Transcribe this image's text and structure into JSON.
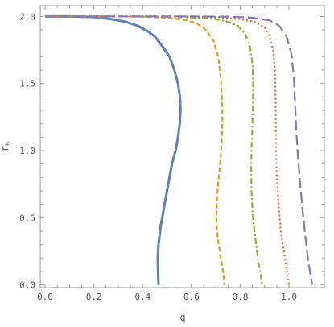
{
  "chart_data": {
    "type": "line",
    "title": "",
    "xlabel": "q",
    "ylabel": "r_h",
    "xlim": [
      -0.02,
      1.145
    ],
    "ylim": [
      -0.02,
      2.08
    ],
    "xticks": [
      {
        "value": 0.0,
        "label": "0.0"
      },
      {
        "value": 0.2,
        "label": "0.2"
      },
      {
        "value": 0.4,
        "label": "0.4"
      },
      {
        "value": 0.6,
        "label": "0.6"
      },
      {
        "value": 0.8,
        "label": "0.8"
      },
      {
        "value": 1.0,
        "label": "1.0"
      }
    ],
    "yticks": [
      {
        "value": 0.0,
        "label": "0.0"
      },
      {
        "value": 0.5,
        "label": "0.5"
      },
      {
        "value": 1.0,
        "label": "1.0"
      },
      {
        "value": 1.5,
        "label": "1.5"
      },
      {
        "value": 2.0,
        "label": "2.0"
      }
    ],
    "grid": false,
    "legend": "none",
    "series": [
      {
        "color": "#5E81B5",
        "style": "solid",
        "x": [
          0.0,
          0.1,
          0.2,
          0.27,
          0.33,
          0.38,
          0.42,
          0.45,
          0.48,
          0.51,
          0.53,
          0.545,
          0.553,
          0.555,
          0.552,
          0.545,
          0.535,
          0.52,
          0.505,
          0.49,
          0.475,
          0.465,
          0.462,
          0.463,
          0.465
        ],
        "y": [
          2.0,
          2.0,
          1.995,
          1.98,
          1.96,
          1.93,
          1.89,
          1.85,
          1.78,
          1.7,
          1.6,
          1.5,
          1.4,
          1.3,
          1.2,
          1.1,
          1.0,
          0.9,
          0.75,
          0.6,
          0.45,
          0.3,
          0.2,
          0.1,
          0.0
        ]
      },
      {
        "color": "#E19C24",
        "style": "dashed",
        "x": [
          0.0,
          0.2,
          0.4,
          0.5,
          0.57,
          0.62,
          0.66,
          0.69,
          0.71,
          0.72,
          0.725,
          0.727,
          0.725,
          0.72,
          0.712,
          0.705,
          0.702,
          0.705,
          0.712,
          0.72,
          0.73,
          0.735
        ],
        "y": [
          2.0,
          2.0,
          1.998,
          1.99,
          1.975,
          1.95,
          1.9,
          1.82,
          1.7,
          1.55,
          1.4,
          1.25,
          1.1,
          0.95,
          0.8,
          0.65,
          0.5,
          0.4,
          0.3,
          0.2,
          0.1,
          0.0
        ]
      },
      {
        "color": "#8FB032",
        "style": "dashdot",
        "x": [
          0.0,
          0.3,
          0.5,
          0.62,
          0.7,
          0.75,
          0.79,
          0.82,
          0.84,
          0.85,
          0.853,
          0.852,
          0.848,
          0.845,
          0.846,
          0.852,
          0.862,
          0.872,
          0.882,
          0.89
        ],
        "y": [
          2.0,
          2.0,
          1.998,
          1.99,
          1.98,
          1.96,
          1.93,
          1.87,
          1.78,
          1.65,
          1.5,
          1.3,
          1.1,
          0.9,
          0.7,
          0.5,
          0.35,
          0.2,
          0.1,
          0.0
        ]
      },
      {
        "color": "#EB6235",
        "style": "dotted",
        "x": [
          0.0,
          0.3,
          0.55,
          0.7,
          0.8,
          0.86,
          0.9,
          0.92,
          0.935,
          0.942,
          0.945,
          0.946,
          0.947,
          0.95,
          0.957,
          0.967,
          0.979,
          0.99,
          1.0
        ],
        "y": [
          2.0,
          2.0,
          2.0,
          1.995,
          1.98,
          1.96,
          1.92,
          1.85,
          1.75,
          1.6,
          1.4,
          1.2,
          1.0,
          0.8,
          0.6,
          0.4,
          0.25,
          0.12,
          0.0
        ]
      },
      {
        "color": "#8778B3",
        "style": "longdash",
        "x": [
          0.0,
          0.3,
          0.6,
          0.75,
          0.85,
          0.92,
          0.96,
          0.99,
          1.01,
          1.02,
          1.025,
          1.03,
          1.037,
          1.046,
          1.056,
          1.066,
          1.076,
          1.086,
          1.095
        ],
        "y": [
          2.0,
          2.0,
          2.0,
          1.998,
          1.99,
          1.97,
          1.93,
          1.85,
          1.72,
          1.55,
          1.35,
          1.15,
          0.95,
          0.75,
          0.55,
          0.38,
          0.22,
          0.1,
          0.0
        ]
      }
    ]
  }
}
